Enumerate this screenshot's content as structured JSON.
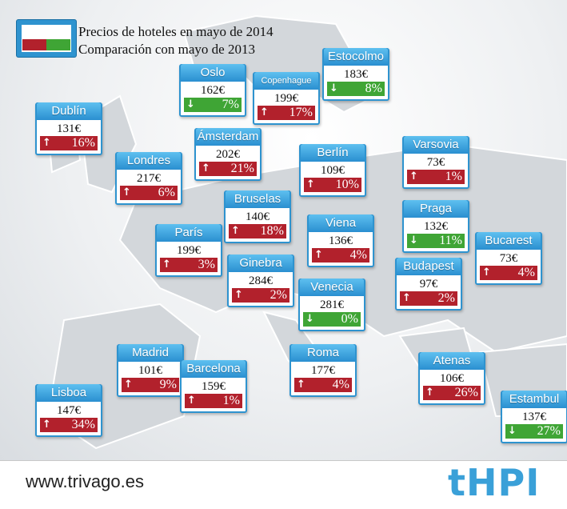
{
  "legend": {
    "price_label": "Precios de hoteles en mayo de 2014",
    "change_label": "Comparación con mayo de 2013",
    "colors": {
      "increase": "#b2212c",
      "decrease": "#3fa535",
      "header": "#2e93cf"
    }
  },
  "footer": {
    "website": "www.trivago.es",
    "logo": "tHPI"
  },
  "chart_data": {
    "type": "table",
    "columns": [
      "city",
      "price",
      "change_pct"
    ],
    "rows": [
      {
        "city": "Oslo",
        "price": "162€",
        "change": "7%",
        "direction": "down"
      },
      {
        "city": "Copenhague",
        "price": "199€",
        "change": "17%",
        "direction": "up"
      },
      {
        "city": "Estocolmo",
        "price": "183€",
        "change": "8%",
        "direction": "down"
      },
      {
        "city": "Dublín",
        "price": "131€",
        "change": "16%",
        "direction": "up"
      },
      {
        "city": "Ámsterdam",
        "price": "202€",
        "change": "21%",
        "direction": "up"
      },
      {
        "city": "Londres",
        "price": "217€",
        "change": "6%",
        "direction": "up"
      },
      {
        "city": "Berlín",
        "price": "109€",
        "change": "10%",
        "direction": "up"
      },
      {
        "city": "Varsovia",
        "price": "73€",
        "change": "1%",
        "direction": "up"
      },
      {
        "city": "Bruselas",
        "price": "140€",
        "change": "18%",
        "direction": "up"
      },
      {
        "city": "París",
        "price": "199€",
        "change": "3%",
        "direction": "up"
      },
      {
        "city": "Viena",
        "price": "136€",
        "change": "4%",
        "direction": "up"
      },
      {
        "city": "Praga",
        "price": "132€",
        "change": "11%",
        "direction": "down"
      },
      {
        "city": "Bucarest",
        "price": "73€",
        "change": "4%",
        "direction": "up"
      },
      {
        "city": "Ginebra",
        "price": "284€",
        "change": "2%",
        "direction": "up"
      },
      {
        "city": "Budapest",
        "price": "97€",
        "change": "2%",
        "direction": "up"
      },
      {
        "city": "Venecia",
        "price": "281€",
        "change": "0%",
        "direction": "down"
      },
      {
        "city": "Madrid",
        "price": "101€",
        "change": "9%",
        "direction": "up"
      },
      {
        "city": "Roma",
        "price": "177€",
        "change": "4%",
        "direction": "up"
      },
      {
        "city": "Barcelona",
        "price": "159€",
        "change": "1%",
        "direction": "up"
      },
      {
        "city": "Atenas",
        "price": "106€",
        "change": "26%",
        "direction": "up"
      },
      {
        "city": "Lisboa",
        "price": "147€",
        "change": "34%",
        "direction": "up"
      },
      {
        "city": "Estambul",
        "price": "137€",
        "change": "27%",
        "direction": "down"
      }
    ]
  }
}
